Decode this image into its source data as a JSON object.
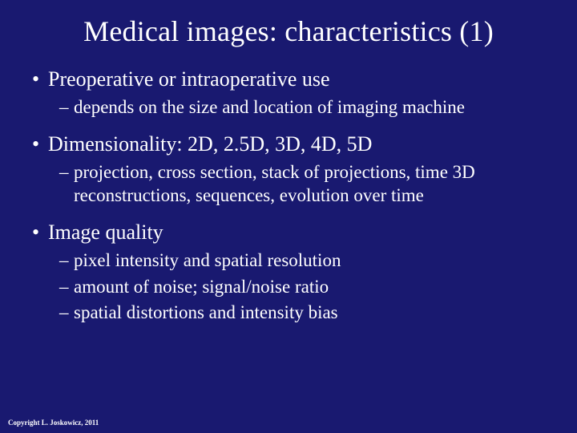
{
  "colors": {
    "background": "#191970",
    "text": "#ffffff"
  },
  "typography": {
    "family": "Times New Roman",
    "title_fontsize": 36,
    "l1_fontsize": 26,
    "l2_fontsize": 23,
    "copyright_fontsize": 9
  },
  "slide": {
    "title": "Medical images: characteristics (1)",
    "items": [
      {
        "label": "Preoperative or intraoperative use",
        "children": [
          "depends on the size and location of imaging machine"
        ]
      },
      {
        "label": "Dimensionality: 2D, 2.5D, 3D, 4D, 5D",
        "children": [
          "projection, cross section, stack of projections, time 3D reconstructions, sequences, evolution over time"
        ]
      },
      {
        "label": "Image quality",
        "children": [
          "pixel intensity and spatial resolution",
          "amount of noise; signal/noise ratio",
          "spatial distortions and intensity bias"
        ]
      }
    ],
    "copyright": "Copyright L. Joskowicz, 2011"
  }
}
